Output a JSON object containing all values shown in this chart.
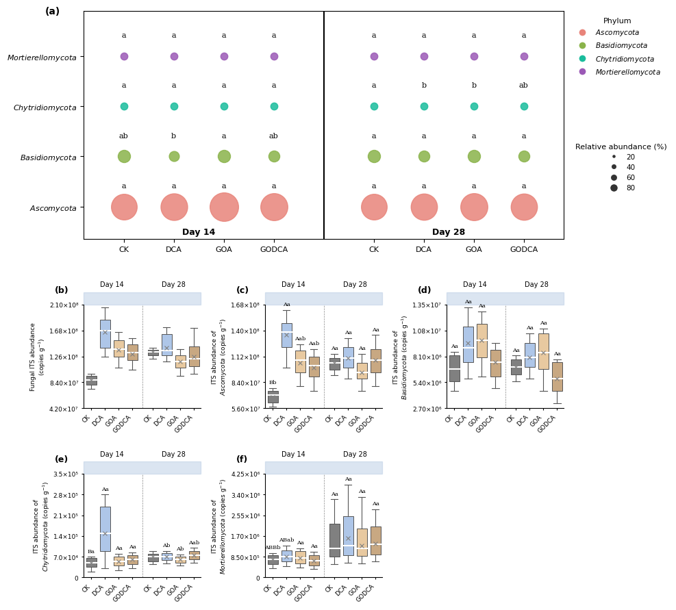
{
  "panel_a": {
    "phyla": [
      "Mortierellomycota",
      "Chytridiomycota",
      "Basidiomycota",
      "Ascomycota"
    ],
    "colors": {
      "Mortierellomycota": "#9b59b6",
      "Chytridiomycota": "#1abc9c",
      "Basidiomycota": "#8ab34a",
      "Ascomycota": "#e8847a"
    },
    "treatments": [
      "CK",
      "DCA",
      "GOA",
      "GODCA"
    ],
    "day14_sizes": {
      "Mortierellomycota": [
        5,
        5,
        5,
        5
      ],
      "Chytridiomycota": [
        5,
        5,
        5,
        5
      ],
      "Basidiomycota": [
        15,
        10,
        15,
        12
      ],
      "Ascomycota": [
        65,
        70,
        80,
        72
      ]
    },
    "day28_sizes": {
      "Mortierellomycota": [
        5,
        5,
        5,
        5
      ],
      "Chytridiomycota": [
        5,
        5,
        5,
        5
      ],
      "Basidiomycota": [
        15,
        12,
        15,
        12
      ],
      "Ascomycota": [
        65,
        68,
        72,
        68
      ]
    },
    "day14_labels": {
      "Mortierellomycota": [
        "a",
        "a",
        "a",
        "a"
      ],
      "Chytridiomycota": [
        "a",
        "a",
        "a",
        "a"
      ],
      "Basidiomycota": [
        "ab",
        "b",
        "a",
        "ab"
      ],
      "Ascomycota": [
        "a",
        "a",
        "a",
        "a"
      ]
    },
    "day28_labels": {
      "Mortierellomycota": [
        "a",
        "a",
        "a",
        "a"
      ],
      "Chytridiomycota": [
        "a",
        "b",
        "b",
        "ab"
      ],
      "Basidiomycota": [
        "a",
        "a",
        "a",
        "a"
      ],
      "Ascomycota": [
        "a",
        "a",
        "a",
        "a"
      ]
    }
  },
  "box_colors": {
    "CK": "#808080",
    "DCA": "#aec6e8",
    "GOA": "#e8c9a0",
    "GODCA": "#c8a882"
  },
  "panel_b": {
    "title": "Fungal ITS abundance\n(copies g⁻¹)",
    "ylabel": "Fungal ITS abundance\n(copies g⁻¹)",
    "ylim": [
      42000000.0,
      210000000.0
    ],
    "yticks": [
      42000000.0,
      84000000.0,
      126000000.0,
      168000000.0,
      210000000.0
    ],
    "ytick_labels": [
      "4.20×10⁷",
      "8.40×10⁷",
      "1.26×10⁸",
      "1.68×10⁸",
      "2.10×10⁸"
    ],
    "day14": {
      "CK": {
        "q1": 80000000.0,
        "median": 88000000.0,
        "q3": 95000000.0,
        "whisker_low": 73000000.0,
        "whisker_high": 98000000.0,
        "mean": 88000000.0
      },
      "DCA": {
        "q1": 140000000.0,
        "median": 168000000.0,
        "q3": 185000000.0,
        "whisker_low": 125000000.0,
        "whisker_high": 205000000.0,
        "mean": 165000000.0
      },
      "GOA": {
        "q1": 125000000.0,
        "median": 138000000.0,
        "q3": 152000000.0,
        "whisker_low": 108000000.0,
        "whisker_high": 165000000.0,
        "mean": 137000000.0
      },
      "GODCA": {
        "q1": 120000000.0,
        "median": 132000000.0,
        "q3": 145000000.0,
        "whisker_low": 105000000.0,
        "whisker_high": 155000000.0,
        "mean": 130000000.0
      }
    },
    "day28": {
      "CK": {
        "q1": 128000000.0,
        "median": 133000000.0,
        "q3": 137000000.0,
        "whisker_low": 122000000.0,
        "whisker_high": 140000000.0,
        "mean": 133000000.0
      },
      "DCA": {
        "q1": 128000000.0,
        "median": 135000000.0,
        "q3": 162000000.0,
        "whisker_low": 118000000.0,
        "whisker_high": 173000000.0,
        "mean": 140000000.0
      },
      "GOA": {
        "q1": 108000000.0,
        "median": 118000000.0,
        "q3": 128000000.0,
        "whisker_low": 95000000.0,
        "whisker_high": 138000000.0,
        "mean": 118000000.0
      },
      "GODCA": {
        "q1": 110000000.0,
        "median": 122000000.0,
        "q3": 142000000.0,
        "whisker_low": 98000000.0,
        "whisker_high": 172000000.0,
        "mean": 125000000.0
      }
    },
    "stat_labels_d14": [
      "",
      "",
      "",
      ""
    ],
    "stat_labels_d28": [
      "",
      "",
      "",
      ""
    ]
  },
  "panel_c": {
    "ylabel": "ITS abundance of\nAscomycota (copies g⁻¹)",
    "ylim": [
      56000000.0,
      168000000.0
    ],
    "yticks": [
      56000000.0,
      84000000.0,
      112000000.0,
      140000000.0,
      168000000.0
    ],
    "ytick_labels": [
      "5.60×10⁷",
      "8.40×10⁷",
      "1.12×10⁸",
      "1.40×10⁸",
      "1.68×10⁸"
    ],
    "day14": {
      "CK": {
        "q1": 62000000.0,
        "median": 70000000.0,
        "q3": 75000000.0,
        "whisker_low": 58000000.0,
        "whisker_high": 78000000.0,
        "mean": 68000000.0
      },
      "DCA": {
        "q1": 122000000.0,
        "median": 138000000.0,
        "q3": 148000000.0,
        "whisker_low": 100000000.0,
        "whisker_high": 162000000.0,
        "mean": 135000000.0
      },
      "GOA": {
        "q1": 95000000.0,
        "median": 108000000.0,
        "q3": 118000000.0,
        "whisker_low": 80000000.0,
        "whisker_high": 125000000.0,
        "mean": 105000000.0
      },
      "GODCA": {
        "q1": 90000000.0,
        "median": 102000000.0,
        "q3": 112000000.0,
        "whisker_low": 75000000.0,
        "whisker_high": 120000000.0,
        "mean": 100000000.0
      }
    },
    "day28": {
      "CK": {
        "q1": 98000000.0,
        "median": 105000000.0,
        "q3": 110000000.0,
        "whisker_low": 92000000.0,
        "whisker_high": 115000000.0,
        "mean": 105000000.0
      },
      "DCA": {
        "q1": 100000000.0,
        "median": 110000000.0,
        "q3": 122000000.0,
        "whisker_low": 88000000.0,
        "whisker_high": 132000000.0,
        "mean": 110000000.0
      },
      "GOA": {
        "q1": 88000000.0,
        "median": 95000000.0,
        "q3": 105000000.0,
        "whisker_low": 75000000.0,
        "whisker_high": 115000000.0,
        "mean": 95000000.0
      },
      "GODCA": {
        "q1": 95000000.0,
        "median": 108000000.0,
        "q3": 120000000.0,
        "whisker_low": 80000000.0,
        "whisker_high": 135000000.0,
        "mean": 108000000.0
      }
    },
    "stat_labels_d14": [
      "Bb",
      "Aa",
      "Aab",
      "Aab"
    ],
    "stat_labels_d28": [
      "Aa",
      "Aa",
      "Aa",
      "Aa"
    ]
  },
  "panel_d": {
    "ylabel": "ITS abundance of\nBasidiomycota (copies g⁻¹)",
    "ylim": [
      2700000.0,
      13500000.0
    ],
    "yticks": [
      2700000.0,
      5400000.0,
      8100000.0,
      10800000.0,
      13500000.0
    ],
    "ytick_labels": [
      "2.70×10⁶",
      "5.40×10⁶",
      "8.10×10⁶",
      "1.08×10⁷",
      "1.35×10⁷"
    ],
    "day14": {
      "CK": {
        "q1": 5500000.0,
        "median": 6800000.0,
        "q3": 8200000.0,
        "whisker_low": 4500000.0,
        "whisker_high": 8600000.0,
        "mean": 6500000.0
      },
      "DCA": {
        "q1": 7500000.0,
        "median": 9000000.0,
        "q3": 11200000.0,
        "whisker_low": 5800000.0,
        "whisker_high": 13200000.0,
        "mean": 9500000.0
      },
      "GOA": {
        "q1": 8000000.0,
        "median": 9800000.0,
        "q3": 11500000.0,
        "whisker_low": 6000000.0,
        "whisker_high": 12800000.0,
        "mean": 9800000.0
      },
      "GODCA": {
        "q1": 6000000.0,
        "median": 7500000.0,
        "q3": 8800000.0,
        "whisker_low": 4800000.0,
        "whisker_high": 9500000.0,
        "mean": 7500000.0
      }
    },
    "day28": {
      "CK": {
        "q1": 6200000.0,
        "median": 7000000.0,
        "q3": 7800000.0,
        "whisker_low": 5500000.0,
        "whisker_high": 8200000.0,
        "mean": 7000000.0
      },
      "DCA": {
        "q1": 7000000.0,
        "median": 8000000.0,
        "q3": 9500000.0,
        "whisker_low": 5800000.0,
        "whisker_high": 10500000.0,
        "mean": 8000000.0
      },
      "GOA": {
        "q1": 6800000.0,
        "median": 8500000.0,
        "q3": 10500000.0,
        "whisker_low": 4500000.0,
        "whisker_high": 11000000.0,
        "mean": 8500000.0
      },
      "GODCA": {
        "q1": 4500000.0,
        "median": 5800000.0,
        "q3": 7500000.0,
        "whisker_low": 3200000.0,
        "whisker_high": 7800000.0,
        "mean": 5800000.0
      }
    },
    "stat_labels_d14": [
      "Aa",
      "Aa",
      "Aa",
      ""
    ],
    "stat_labels_d28": [
      "Aa",
      "Aa",
      "Aa",
      "Aa"
    ]
  },
  "panel_e": {
    "ylabel": "ITS abundance of\nChytridiomycota (copies g⁻¹)",
    "ylim": [
      0,
      350000.0
    ],
    "yticks": [
      0,
      70000.0,
      140000.0,
      210000.0,
      280000.0,
      350000.0
    ],
    "ytick_labels": [
      "0",
      "7.0×10⁴",
      "1.4×10⁵",
      "2.1×10⁵",
      "2.8×10⁵",
      "3.5×10⁵"
    ],
    "day14": {
      "CK": {
        "q1": 35000.0,
        "median": 50000.0,
        "q3": 65000.0,
        "whisker_low": 20000.0,
        "whisker_high": 70000.0,
        "mean": 50000.0
      },
      "DCA": {
        "q1": 90000.0,
        "median": 150000.0,
        "q3": 240000.0,
        "whisker_low": 30000.0,
        "whisker_high": 280000.0,
        "mean": 150000.0
      },
      "GOA": {
        "q1": 40000.0,
        "median": 55000.0,
        "q3": 70000.0,
        "whisker_low": 25000.0,
        "whisker_high": 80000.0,
        "mean": 55000.0
      },
      "GODCA": {
        "q1": 45000.0,
        "median": 60000.0,
        "q3": 75000.0,
        "whisker_low": 30000.0,
        "whisker_high": 85000.0,
        "mean": 60000.0
      }
    },
    "day28": {
      "CK": {
        "q1": 55000.0,
        "median": 70000.0,
        "q3": 80000.0,
        "whisker_low": 45000.0,
        "whisker_high": 88000.0,
        "mean": 70000.0
      },
      "DCA": {
        "q1": 58000.0,
        "median": 70000.0,
        "q3": 82000.0,
        "whisker_low": 48000.0,
        "whisker_high": 90000.0,
        "mean": 70000.0
      },
      "GOA": {
        "q1": 50000.0,
        "median": 60000.0,
        "q3": 70000.0,
        "whisker_low": 40000.0,
        "whisker_high": 78000.0,
        "mean": 60000.0
      },
      "GODCA": {
        "q1": 60000.0,
        "median": 75000.0,
        "q3": 90000.0,
        "whisker_low": 50000.0,
        "whisker_high": 100000.0,
        "mean": 75000.0
      }
    },
    "stat_labels_d14": [
      "Ba",
      "Aa",
      "Aa",
      "Aa"
    ],
    "stat_labels_d28": [
      "",
      "Ab",
      "Ab",
      "Aab"
    ]
  },
  "panel_f": {
    "ylabel": "ITS abundance of\nMortierellomycota (copies g⁻¹)",
    "ylim": [
      0,
      4250000.0
    ],
    "yticks": [
      0,
      850000.0,
      1700000.0,
      2550000.0,
      3400000.0,
      4250000.0
    ],
    "ytick_labels": [
      "0",
      "8.50×10⁵",
      "1.70×10⁶",
      "2.55×10⁶",
      "3.40×10⁶",
      "4.25×10⁶"
    ],
    "day14": {
      "CK": {
        "q1": 550000.0,
        "median": 750000.0,
        "q3": 900000.0,
        "whisker_low": 380000.0,
        "whisker_high": 1000000.0,
        "mean": 750000.0
      },
      "DCA": {
        "q1": 650000.0,
        "median": 850000.0,
        "q3": 1100000.0,
        "whisker_low": 450000.0,
        "whisker_high": 1300000.0,
        "mean": 850000.0
      },
      "GOA": {
        "q1": 580000.0,
        "median": 800000.0,
        "q3": 1080000.0,
        "whisker_low": 400000.0,
        "whisker_high": 1200000.0,
        "mean": 800000.0
      },
      "GODCA": {
        "q1": 500000.0,
        "median": 700000.0,
        "q3": 900000.0,
        "whisker_low": 350000.0,
        "whisker_high": 1050000.0,
        "mean": 700000.0
      }
    },
    "day28": {
      "CK": {
        "q1": 850000.0,
        "median": 1200000.0,
        "q3": 2200000.0,
        "whisker_low": 550000.0,
        "whisker_high": 3200000.0,
        "mean": 1500000.0
      },
      "DCA": {
        "q1": 900000.0,
        "median": 1300000.0,
        "q3": 2500000.0,
        "whisker_low": 600000.0,
        "whisker_high": 3800000.0,
        "mean": 1600000.0
      },
      "GOA": {
        "q1": 880000.0,
        "median": 1200000.0,
        "q3": 2000000.0,
        "whisker_low": 580000.0,
        "whisker_high": 3300000.0,
        "mean": 1300000.0
      },
      "GODCA": {
        "q1": 950000.0,
        "median": 1350000.0,
        "q3": 2100000.0,
        "whisker_low": 650000.0,
        "whisker_high": 2800000.0,
        "mean": 1400000.0
      }
    },
    "stat_labels_d14": [
      "ABBb",
      "ABab",
      "Aa",
      "Aa"
    ],
    "stat_labels_d28": [
      "Aa",
      "Aa",
      "Aa",
      "Aa"
    ]
  }
}
